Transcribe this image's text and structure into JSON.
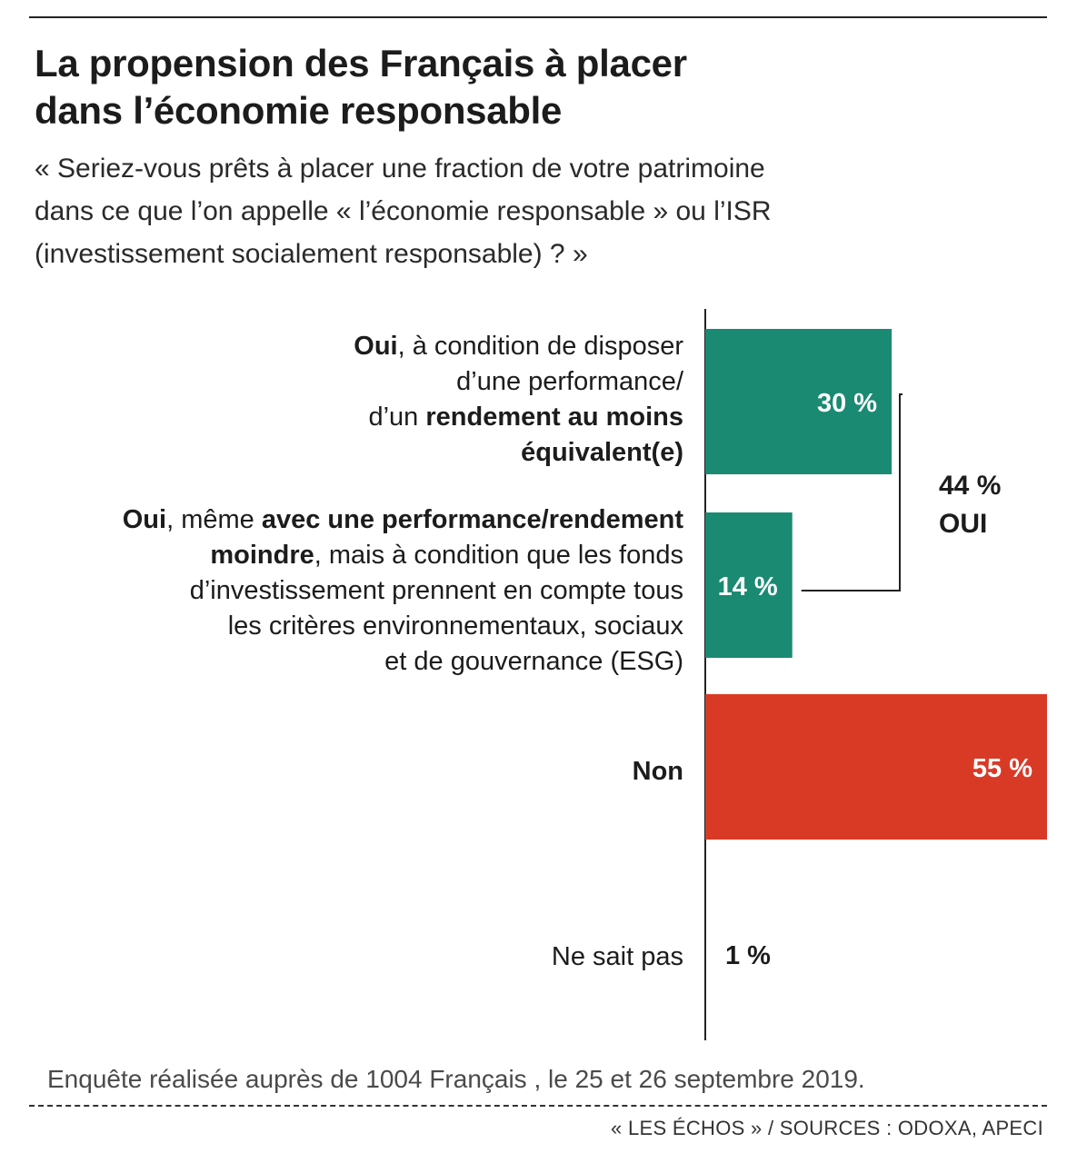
{
  "header": {
    "title_line1": "La propension des Français à placer",
    "title_line2": "dans l’économie responsable",
    "question_line1": "« Seriez-vous prêts à placer une fraction de votre patrimoine",
    "question_line2": "dans ce que l’on appelle « l’économie responsable » ou l’ISR",
    "question_line3": "(investissement socialement responsable) ? »"
  },
  "labels": {
    "cat1": {
      "l1_bold": "Oui",
      "l1_rest": ", à condition de disposer",
      "l2": "d’une performance/",
      "l3_pre": "d’un ",
      "l3_bold": "rendement au moins",
      "l4_bold": "équivalent(e)"
    },
    "cat2": {
      "l1_bold_a": "Oui",
      "l1_mid": ", même ",
      "l1_bold_b": "avec une performance/rendement",
      "l2_bold": "moindre",
      "l2_rest": ", mais à condition que les fonds",
      "l3": "d’investissement prennent en compte tous",
      "l4": "les critères environnementaux, sociaux",
      "l5": "et de gouvernance (ESG)"
    },
    "cat3": "Non",
    "cat4": "Ne sait pas"
  },
  "total": {
    "value": "44 %",
    "label": "OUI"
  },
  "footer": {
    "note": "Enquête réalisée auprès de 1004 Français , le 25 et 26 septembre 2019.",
    "source": "« LES ÉCHOS » / SOURCES : ODOXA, APECI"
  },
  "colors": {
    "oui": "#1a8a72",
    "non": "#d93a26",
    "axis": "#222222",
    "label_white": "#ffffff",
    "label_dark": "#1c1c1c"
  },
  "chart_data": {
    "type": "bar",
    "orientation": "horizontal",
    "categories": [
      "Oui, à condition de disposer d’une performance/d’un rendement au moins équivalent(e)",
      "Oui, même avec une performance/rendement moindre, mais à condition que les fonds d’investissement prennent en compte tous les critères environnementaux, sociaux et de gouvernance (ESG)",
      "Non",
      "Ne sait pas"
    ],
    "values": [
      30,
      14,
      55,
      1
    ],
    "value_labels": [
      "30 %",
      "14 %",
      "55 %",
      "1 %"
    ],
    "xlim": [
      0,
      55
    ],
    "bracket": {
      "categories": [
        0,
        1
      ],
      "value": 44
    }
  }
}
